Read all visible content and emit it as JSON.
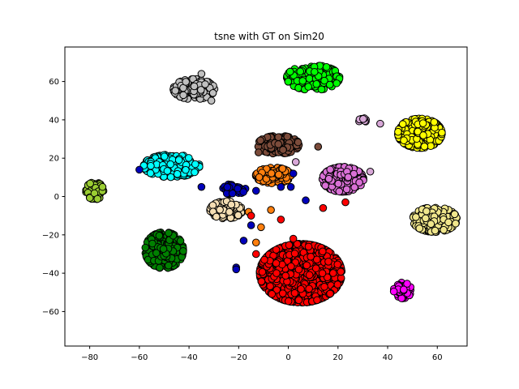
{
  "chart_data": {
    "type": "scatter",
    "title": "tsne with GT on Sim20",
    "xlabel": "",
    "ylabel": "",
    "xlim": [
      -90,
      72
    ],
    "ylim": [
      -78,
      78
    ],
    "xticks": [
      -80,
      -60,
      -40,
      -20,
      0,
      20,
      40,
      60
    ],
    "yticks": [
      -60,
      -40,
      -20,
      0,
      20,
      40,
      60
    ],
    "grid": false,
    "legend": "none",
    "marker_edge_color": "#000000",
    "clusters": [
      {
        "color": "#00ff00",
        "center": [
          10,
          62
        ],
        "spread": [
          9,
          5.5
        ],
        "count": 260
      },
      {
        "color": "#c0c0c0",
        "center": [
          -38,
          56
        ],
        "spread": [
          7,
          4.5
        ],
        "count": 150
      },
      {
        "color": "#ffff00",
        "center": [
          53,
          33
        ],
        "spread": [
          7.5,
          6.5
        ],
        "count": 260
      },
      {
        "color": "#7b4b3a",
        "center": [
          -4,
          27
        ],
        "spread": [
          7,
          4
        ],
        "count": 200
      },
      {
        "color": "#00ffff",
        "center": [
          -47,
          16
        ],
        "spread": [
          9.5,
          5
        ],
        "count": 300
      },
      {
        "color": "#da70d6",
        "center": [
          22,
          9
        ],
        "spread": [
          7,
          5.5
        ],
        "count": 240
      },
      {
        "color": "#ff7f0e",
        "center": [
          -6,
          11
        ],
        "spread": [
          6,
          3.5
        ],
        "count": 160
      },
      {
        "color": "#0000bb",
        "center": [
          -22,
          4
        ],
        "spread": [
          4,
          2.5
        ],
        "count": 40
      },
      {
        "color": "#9acd32",
        "center": [
          -78,
          3
        ],
        "spread": [
          3,
          3.8
        ],
        "count": 70
      },
      {
        "color": "#f5deb3",
        "center": [
          -25,
          -7
        ],
        "spread": [
          5.5,
          3.8
        ],
        "count": 120
      },
      {
        "color": "#f0e68c",
        "center": [
          59,
          -12
        ],
        "spread": [
          7.5,
          5.5
        ],
        "count": 260
      },
      {
        "color": "#008000",
        "center": [
          -50,
          -28
        ],
        "spread": [
          6.5,
          8
        ],
        "count": 300
      },
      {
        "color": "#ff0000",
        "center": [
          5,
          -40
        ],
        "spread": [
          14,
          13
        ],
        "count": 950
      },
      {
        "color": "#ff00ff",
        "center": [
          46,
          -49
        ],
        "spread": [
          3,
          3.5
        ],
        "count": 60
      },
      {
        "color": "#d8a8d8",
        "center": [
          30,
          40
        ],
        "spread": [
          1.5,
          1.2
        ],
        "count": 10
      }
    ],
    "outliers": [
      {
        "color": "#0000bb",
        "points": [
          [
            -35,
            5
          ],
          [
            -15,
            -15
          ],
          [
            -21,
            -37
          ],
          [
            -3,
            5
          ],
          [
            1,
            5
          ],
          [
            2,
            12
          ],
          [
            -60,
            14
          ],
          [
            -21,
            -38
          ],
          [
            -18,
            -23
          ],
          [
            -13,
            3
          ],
          [
            7,
            -2
          ]
        ]
      },
      {
        "color": "#ff7f0e",
        "points": [
          [
            -7,
            -7
          ],
          [
            -11,
            -16
          ],
          [
            -13,
            -24
          ],
          [
            -16,
            -8
          ]
        ]
      },
      {
        "color": "#ff0000",
        "points": [
          [
            -15,
            -10
          ],
          [
            -13,
            -30
          ],
          [
            23,
            -3
          ],
          [
            14,
            -6
          ],
          [
            -3,
            -12
          ],
          [
            2,
            -22
          ]
        ]
      },
      {
        "color": "#d8a8d8",
        "points": [
          [
            37,
            38
          ],
          [
            3,
            18
          ],
          [
            33,
            13
          ]
        ]
      },
      {
        "color": "#c0c0c0",
        "points": [
          [
            -35,
            64
          ],
          [
            -31,
            50
          ]
        ]
      },
      {
        "color": "#7b4b3a",
        "points": [
          [
            12,
            26
          ],
          [
            -12,
            23
          ]
        ]
      }
    ]
  }
}
